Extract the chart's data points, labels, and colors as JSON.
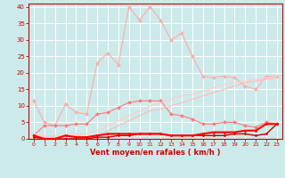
{
  "x": [
    0,
    1,
    2,
    3,
    4,
    5,
    6,
    7,
    8,
    9,
    10,
    11,
    12,
    13,
    14,
    15,
    16,
    17,
    18,
    19,
    20,
    21,
    22,
    23
  ],
  "series": [
    {
      "color": "#ffaaaa",
      "linewidth": 0.8,
      "marker": "D",
      "markersize": 2.0,
      "values": [
        11.5,
        5.0,
        4.0,
        10.5,
        8.0,
        7.5,
        23.0,
        26.0,
        22.5,
        40.0,
        36.0,
        40.0,
        36.0,
        30.0,
        32.0,
        25.0,
        19.0,
        18.5,
        19.0,
        18.5,
        16.0,
        15.0,
        19.0,
        19.0
      ]
    },
    {
      "color": "#ff7777",
      "linewidth": 0.8,
      "marker": "D",
      "markersize": 2.0,
      "values": [
        1.0,
        4.0,
        4.0,
        4.0,
        4.5,
        4.5,
        7.5,
        8.0,
        9.5,
        11.0,
        11.5,
        11.5,
        11.5,
        7.5,
        7.0,
        6.0,
        4.5,
        4.5,
        5.0,
        5.0,
        4.0,
        3.5,
        5.0,
        4.5
      ]
    },
    {
      "color": "#ffbbbb",
      "linewidth": 0.8,
      "marker": null,
      "markersize": 0,
      "values": [
        1.0,
        0.5,
        0.5,
        0.5,
        1.0,
        0.5,
        1.0,
        2.5,
        4.0,
        5.5,
        7.0,
        8.5,
        9.0,
        10.0,
        11.0,
        12.0,
        13.0,
        14.0,
        15.0,
        16.0,
        17.0,
        17.5,
        18.0,
        18.5
      ]
    },
    {
      "color": "#ffcccc",
      "linewidth": 0.8,
      "marker": null,
      "markersize": 0,
      "values": [
        1.5,
        1.0,
        1.0,
        1.0,
        1.5,
        1.5,
        2.5,
        4.0,
        5.5,
        7.0,
        8.5,
        10.0,
        11.0,
        12.0,
        13.0,
        13.5,
        14.5,
        15.5,
        16.5,
        17.0,
        17.5,
        18.0,
        18.5,
        19.0
      ]
    },
    {
      "color": "#cc0000",
      "linewidth": 1.0,
      "marker": "D",
      "markersize": 1.5,
      "values": [
        0.5,
        0.0,
        0.0,
        0.0,
        0.0,
        0.0,
        0.5,
        0.5,
        1.0,
        1.0,
        1.5,
        1.5,
        1.5,
        1.0,
        1.0,
        1.0,
        1.0,
        1.0,
        1.0,
        1.5,
        1.5,
        1.0,
        1.5,
        4.5
      ]
    },
    {
      "color": "#ff0000",
      "linewidth": 1.5,
      "marker": "D",
      "markersize": 1.5,
      "values": [
        1.0,
        0.0,
        0.0,
        1.0,
        0.5,
        0.5,
        1.0,
        1.5,
        1.5,
        1.5,
        1.5,
        1.5,
        1.5,
        1.0,
        1.0,
        1.0,
        1.5,
        2.0,
        2.0,
        2.0,
        2.5,
        2.5,
        4.5,
        4.5
      ]
    }
  ],
  "xlabel": "Vent moyen/en rafales ( km/h )",
  "background_color": "#cceaea",
  "grid_color": "#ffffff",
  "axis_color": "#cc0000",
  "text_color": "#cc0000",
  "ylim": [
    0,
    41
  ],
  "xlim": [
    -0.5,
    23.5
  ],
  "yticks": [
    0,
    5,
    10,
    15,
    20,
    25,
    30,
    35,
    40
  ],
  "xticks": [
    0,
    1,
    2,
    3,
    4,
    5,
    6,
    7,
    8,
    9,
    10,
    11,
    12,
    13,
    14,
    15,
    16,
    17,
    18,
    19,
    20,
    21,
    22,
    23
  ],
  "xlabel_fontsize": 6.0,
  "tick_fontsize": 4.5
}
